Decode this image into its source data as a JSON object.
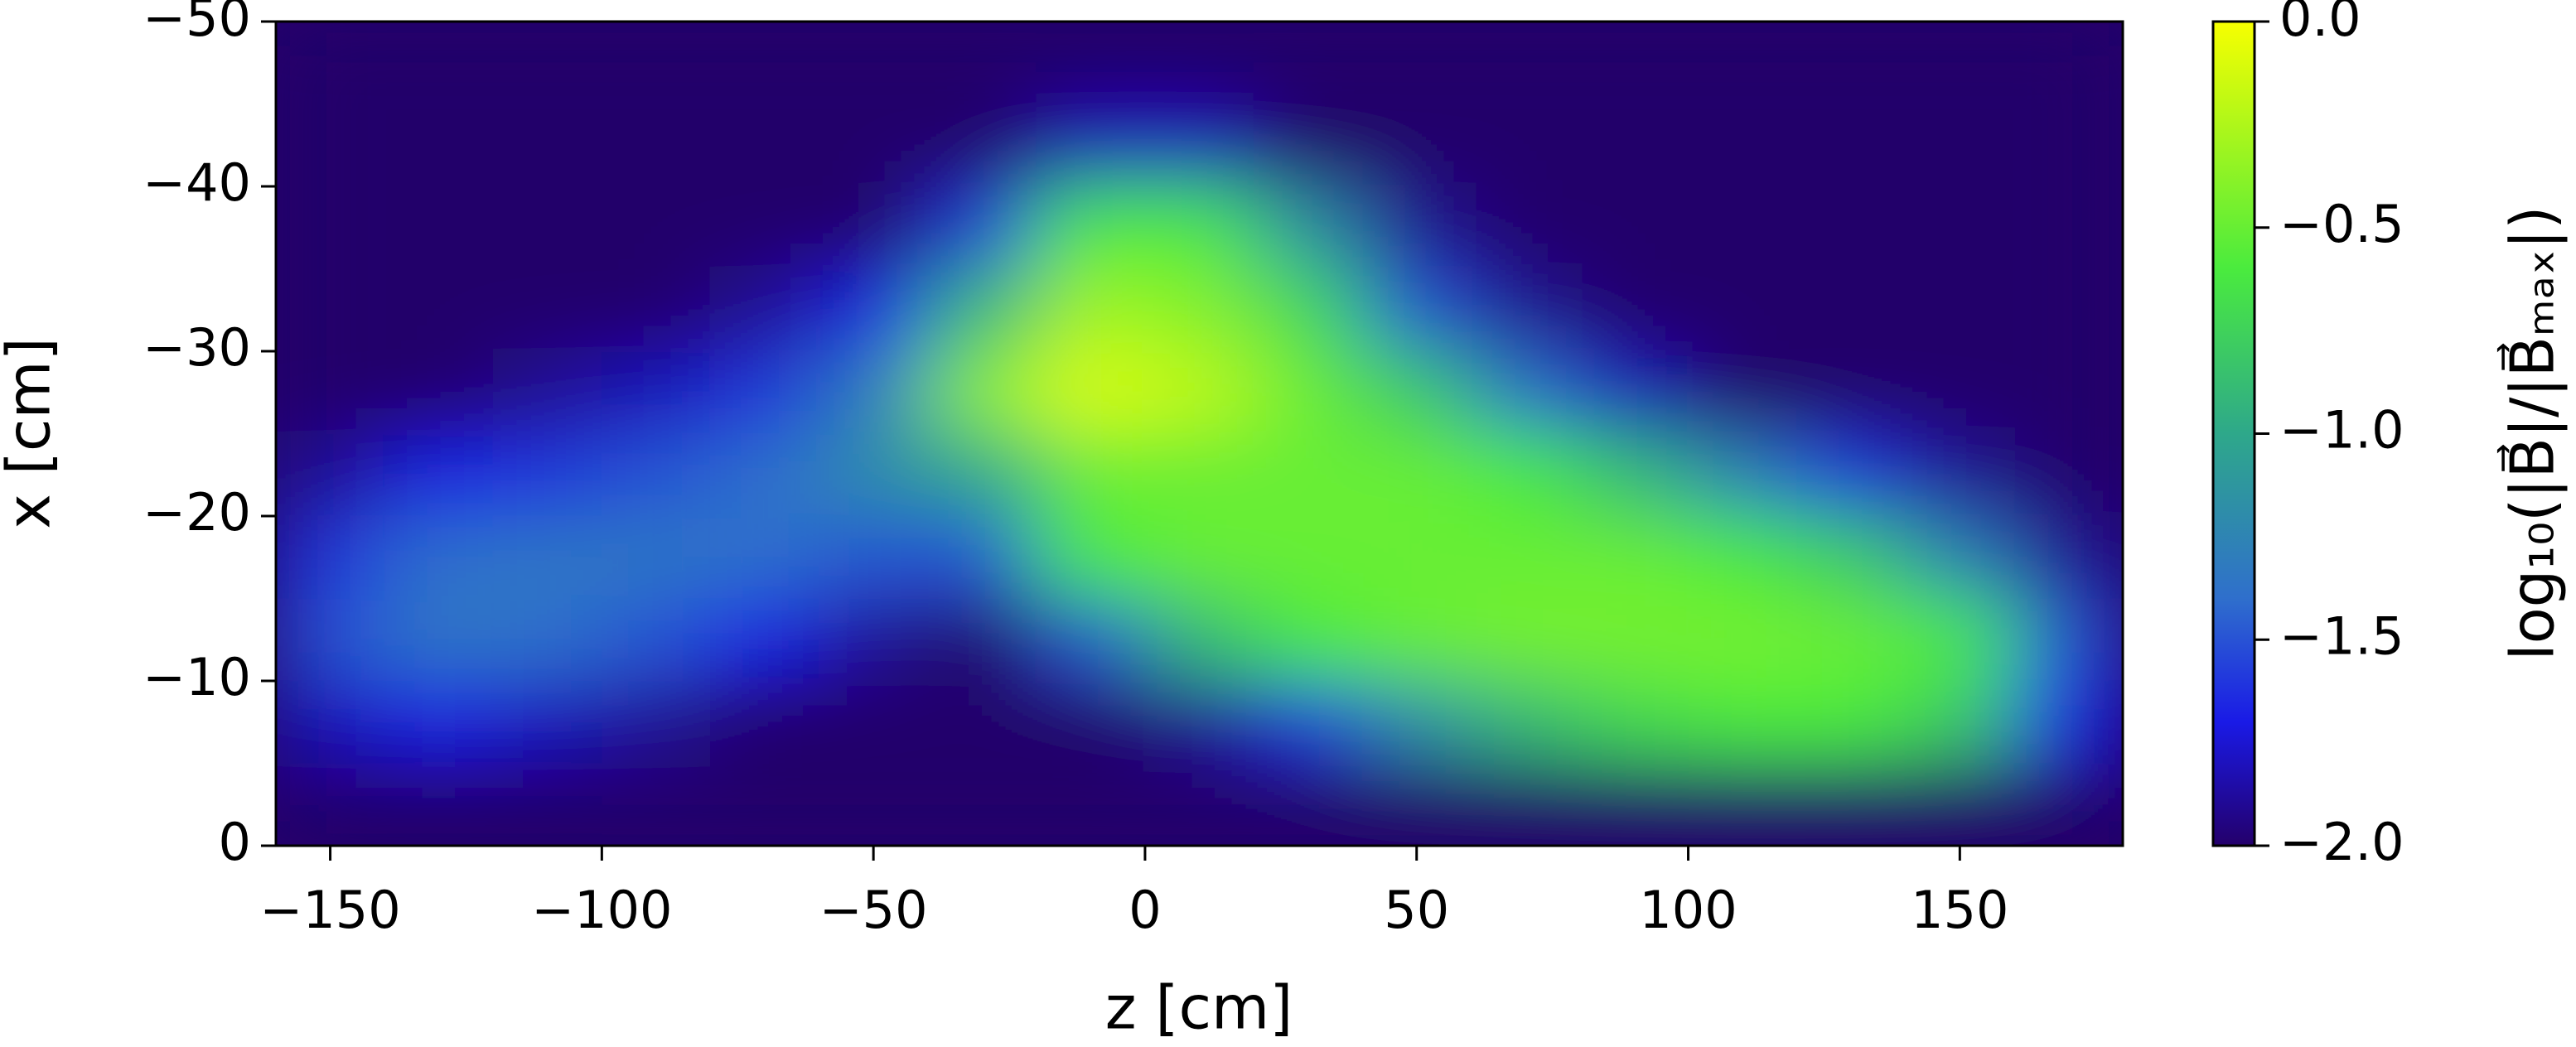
{
  "chart_data": {
    "type": "heatmap",
    "xlabel": "z [cm]",
    "ylabel": "x [cm]",
    "colorbar_label": "log₁₀(|B⃗|/|B⃗ₘₐₓ|)",
    "xlim": [
      -160,
      180
    ],
    "ylim": [
      0,
      -50
    ],
    "xticks": [
      {
        "value": -150,
        "label": "−150"
      },
      {
        "value": -100,
        "label": "−100"
      },
      {
        "value": -50,
        "label": "−50"
      },
      0,
      50,
      100,
      150
    ],
    "yticks": [
      0,
      {
        "value": -10,
        "label": "−10"
      },
      {
        "value": -20,
        "label": "−20"
      },
      {
        "value": -30,
        "label": "−30"
      },
      {
        "value": -40,
        "label": "−40"
      },
      {
        "value": -50,
        "label": "−50"
      }
    ],
    "x": [
      -150,
      -130,
      -110,
      -90,
      -70,
      -50,
      -30,
      -10,
      10,
      30,
      50,
      70,
      90,
      110,
      130,
      150,
      170
    ],
    "y": [
      -47.5,
      -42.5,
      -37.5,
      -32.5,
      -27.5,
      -22.5,
      -17.5,
      -12.5,
      -7.5,
      -2.5
    ],
    "values": [
      [
        -2,
        -2,
        -2,
        -2,
        -2,
        -2,
        -2,
        -2,
        -2,
        -2,
        -2,
        -2,
        -2,
        -2,
        -2,
        -2,
        -2
      ],
      [
        -2,
        -2,
        -2,
        -2,
        -2,
        -2,
        -2,
        -1.8,
        -1.8,
        -2,
        -2,
        -2,
        -2,
        -2,
        -2,
        -2,
        -2
      ],
      [
        -2,
        -2,
        -2,
        -2,
        -2,
        -2,
        -1.6,
        -0.6,
        -0.6,
        -1.2,
        -1.9,
        -2,
        -2,
        -2,
        -2,
        -2,
        -2
      ],
      [
        -2,
        -2,
        -2,
        -2,
        -1.9,
        -1.7,
        -0.9,
        -0.3,
        -0.4,
        -0.7,
        -1.5,
        -1.9,
        -2,
        -2,
        -2,
        -2,
        -2
      ],
      [
        -2,
        -2,
        -1.9,
        -1.8,
        -1.6,
        -1.3,
        -0.4,
        -0.1,
        -0.2,
        -0.5,
        -0.8,
        -1.4,
        -1.8,
        -2,
        -2,
        -2,
        -2
      ],
      [
        -1.9,
        -1.7,
        -1.6,
        -1.5,
        -1.4,
        -1.2,
        -1.0,
        -0.5,
        -0.5,
        -0.5,
        -0.5,
        -0.6,
        -0.9,
        -1.3,
        -1.6,
        -1.9,
        -2
      ],
      [
        -1.6,
        -1.4,
        -1.35,
        -1.35,
        -1.4,
        -1.5,
        -1.5,
        -0.6,
        -0.5,
        -0.5,
        -0.5,
        -0.5,
        -0.5,
        -0.6,
        -0.8,
        -1.3,
        -1.9
      ],
      [
        -1.5,
        -1.35,
        -1.4,
        -1.5,
        -1.7,
        -1.9,
        -2,
        -1.5,
        -0.9,
        -0.6,
        -0.5,
        -0.45,
        -0.45,
        -0.45,
        -0.5,
        -0.6,
        -1.5
      ],
      [
        -1.8,
        -1.7,
        -1.8,
        -1.9,
        -2,
        -2,
        -2,
        -2,
        -1.9,
        -1.6,
        -1.2,
        -0.9,
        -0.7,
        -0.6,
        -0.6,
        -0.8,
        -1.7
      ],
      [
        -2,
        -2,
        -2,
        -2,
        -2,
        -2,
        -2,
        -2,
        -2,
        -2,
        -2,
        -2,
        -2,
        -2,
        -2,
        -2,
        -2
      ]
    ],
    "clim": [
      -2,
      0
    ],
    "cticks": [
      {
        "value": -2,
        "label": "−2.0"
      },
      {
        "value": -1.5,
        "label": "−1.5"
      },
      {
        "value": -1,
        "label": "−1.0"
      },
      {
        "value": -0.5,
        "label": "−0.5"
      },
      {
        "value": 0,
        "label": "0.0"
      }
    ],
    "colormap": [
      {
        "value": -2,
        "color": "#24006b"
      },
      {
        "value": -1.7,
        "color": "#1a1ae6"
      },
      {
        "value": -1.4,
        "color": "#2f6fcc"
      },
      {
        "value": -1.0,
        "color": "#2ea88a"
      },
      {
        "value": -0.6,
        "color": "#4aeb3e"
      },
      {
        "value": 0,
        "color": "#f7ff00"
      }
    ]
  }
}
